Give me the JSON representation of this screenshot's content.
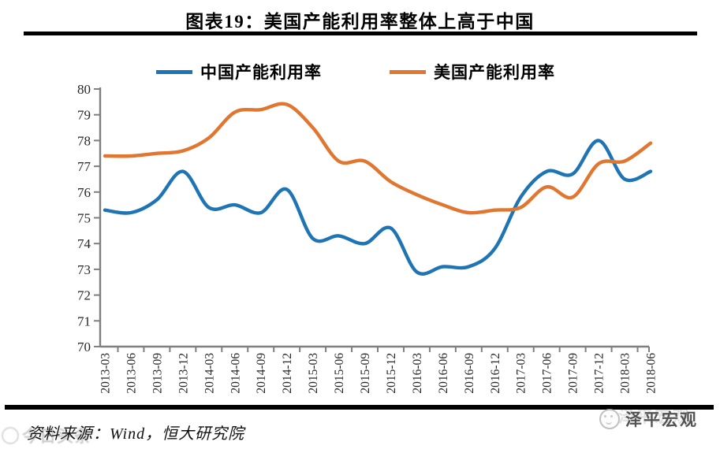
{
  "title": "图表19：美国产能利用率整体上高于中国",
  "legend": {
    "items": [
      {
        "label": "中国产能利用率",
        "color": "#1F74B4"
      },
      {
        "label": "美国产能利用率",
        "color": "#E0762F"
      }
    ]
  },
  "chart_data": {
    "type": "line",
    "smooth": true,
    "grid": false,
    "legend_position": "top",
    "categories": [
      "2013-03",
      "2013-06",
      "2013-09",
      "2013-12",
      "2014-03",
      "2014-06",
      "2014-09",
      "2014-12",
      "2015-03",
      "2015-06",
      "2015-09",
      "2015-12",
      "2016-03",
      "2016-06",
      "2016-09",
      "2016-12",
      "2017-03",
      "2017-06",
      "2017-09",
      "2017-12",
      "2018-03",
      "2018-06"
    ],
    "series": [
      {
        "name": "中国产能利用率",
        "color": "#1F74B4",
        "values": [
          75.3,
          75.2,
          75.7,
          76.8,
          75.4,
          75.5,
          75.2,
          76.1,
          74.2,
          74.3,
          74.0,
          74.6,
          72.9,
          73.1,
          73.1,
          73.8,
          75.8,
          76.8,
          76.7,
          78.0,
          76.5,
          76.8
        ]
      },
      {
        "name": "美国产能利用率",
        "color": "#E0762F",
        "values": [
          77.4,
          77.4,
          77.5,
          77.6,
          78.1,
          79.1,
          79.2,
          79.4,
          78.5,
          77.2,
          77.2,
          76.4,
          75.9,
          75.5,
          75.2,
          75.3,
          75.4,
          76.2,
          75.8,
          77.1,
          77.2,
          77.9
        ]
      }
    ],
    "ylim": [
      70,
      80
    ],
    "ytick_step": 1,
    "xlabel": "",
    "ylabel": ""
  },
  "footer": {
    "source": "资料来源：Wind，恒大研究院"
  },
  "watermarks": {
    "bottom_right": "泽平宏观",
    "bottom_left": "今日头条"
  }
}
